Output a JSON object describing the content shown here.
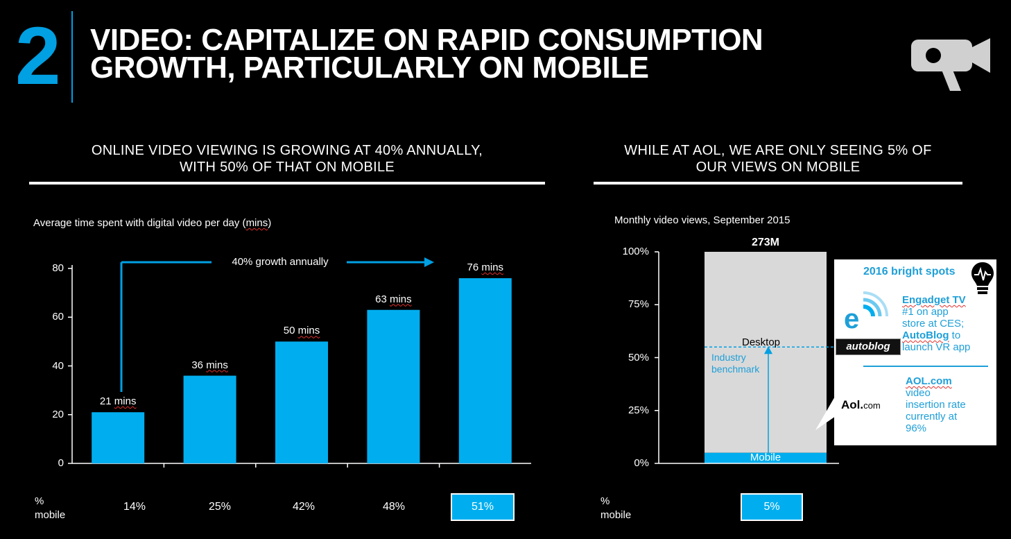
{
  "header": {
    "number": "2",
    "title_line1": "VIDEO: CAPITALIZE ON RAPID CONSUMPTION",
    "title_line2": "GROWTH, PARTICULARLY ON MOBILE"
  },
  "left": {
    "heading_line1": "ONLINE VIDEO VIEWING IS GROWING AT 40% ANNUALLY,",
    "heading_line2": "WITH 50% OF THAT ON MOBILE",
    "subtitle": "Average time spent with digital video per day (mins)",
    "growth_label": "40% growth annually",
    "mobile_label_1": "%",
    "mobile_label_2": "mobile",
    "mobile_pcts": [
      "14%",
      "25%",
      "42%",
      "48%",
      "51%"
    ]
  },
  "right": {
    "heading_line1": "WHILE AT AOL, WE ARE ONLY SEEING 5% OF",
    "heading_line2": "OUR VIEWS ON MOBILE",
    "subtitle": "Monthly video views, September 2015",
    "total_label": "273M",
    "desktop_label": "Desktop",
    "mobile_segment_label": "Mobile",
    "benchmark_line1": "Industry",
    "benchmark_line2": "benchmark",
    "mobile_label_1": "%",
    "mobile_label_2": "mobile",
    "mobile_pct": "5%",
    "callout": {
      "title": "2016 bright spots",
      "engadget_title": "Engadget TV",
      "engadget_text_1": "#1 on app",
      "engadget_text_2": "store at CES;",
      "autoblog_title": "AutoBlog",
      "autoblog_text_1": "to",
      "autoblog_text_2": "launch VR app",
      "autoblog_logo": "autoblog",
      "engadget_logo": "e",
      "aol_logo": "Aol.",
      "aol_logo_suffix": "com",
      "aol_title": "AOL.com",
      "aol_text_1": "video",
      "aol_text_2": "insertion rate",
      "aol_text_3": "currently at",
      "aol_text_4": "96%"
    }
  },
  "colors": {
    "accent": "#00a0e3",
    "bar": "#00aeef",
    "desktop_segment": "#d9d9d9",
    "background": "#000000"
  },
  "icons": [
    "video-camera-icon",
    "lightbulb-icon",
    "engadget-logo-icon"
  ],
  "chart_data": [
    {
      "type": "bar",
      "categories": [
        "",
        "",
        "",
        "",
        ""
      ],
      "values": [
        21,
        36,
        50,
        63,
        76
      ],
      "data_labels": [
        "21 mins",
        "36 mins",
        "50 mins",
        "63 mins",
        "76 mins"
      ],
      "title": "Average time spent with digital video per day (mins)",
      "ylim": [
        0,
        80
      ],
      "yticks": [
        "0",
        "20",
        "40",
        "60",
        "80"
      ],
      "grid": false,
      "legend": "none"
    },
    {
      "type": "bar",
      "stacked": true,
      "categories": [
        "September 2015"
      ],
      "series": [
        {
          "name": "Mobile",
          "values": [
            5
          ]
        },
        {
          "name": "Desktop",
          "values": [
            95
          ]
        }
      ],
      "total": "273M",
      "benchmark": 55,
      "title": "Monthly video views, September 2015",
      "ylim": [
        0,
        100
      ],
      "yticks": [
        "0%",
        "25%",
        "50%",
        "75%",
        "100%"
      ],
      "grid": false,
      "legend": "none"
    }
  ]
}
